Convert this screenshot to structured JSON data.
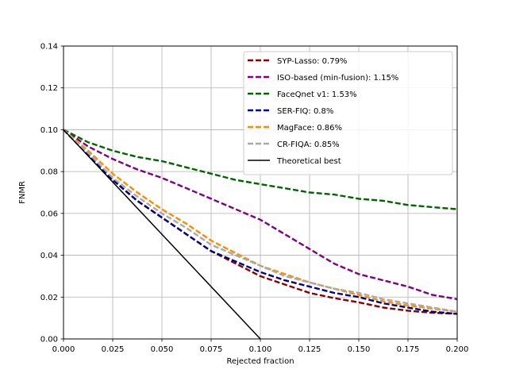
{
  "chart_data": {
    "type": "line",
    "title": "",
    "xlabel": "Rejected fraction",
    "ylabel": "FNMR",
    "xlim": [
      0.0,
      0.2
    ],
    "ylim": [
      0.0,
      0.14
    ],
    "xticks": [
      0.0,
      0.025,
      0.05,
      0.075,
      0.1,
      0.125,
      0.15,
      0.175,
      0.2
    ],
    "xtick_labels": [
      "0.000",
      "0.025",
      "0.050",
      "0.075",
      "0.100",
      "0.125",
      "0.150",
      "0.175",
      "0.200"
    ],
    "yticks": [
      0.0,
      0.02,
      0.04,
      0.06,
      0.08,
      0.1,
      0.12,
      0.14
    ],
    "ytick_labels": [
      "0.00",
      "0.02",
      "0.04",
      "0.06",
      "0.08",
      "0.10",
      "0.12",
      "0.14"
    ],
    "grid": true,
    "legend_position": "top-right",
    "series": [
      {
        "name": "SYP-Lasso: 0.79%",
        "color": "#8b0000",
        "dash": "dashed",
        "x": [
          0.0,
          0.0125,
          0.025,
          0.0375,
          0.05,
          0.0625,
          0.075,
          0.0875,
          0.1,
          0.1125,
          0.125,
          0.1375,
          0.15,
          0.1625,
          0.175,
          0.1875,
          0.2
        ],
        "y": [
          0.1,
          0.088,
          0.076,
          0.066,
          0.058,
          0.05,
          0.042,
          0.036,
          0.03,
          0.026,
          0.022,
          0.0195,
          0.0175,
          0.015,
          0.0135,
          0.0125,
          0.012
        ]
      },
      {
        "name": "ISO-based (min-fusion): 1.15%",
        "color": "#800080",
        "dash": "dashed",
        "x": [
          0.0,
          0.0125,
          0.025,
          0.0375,
          0.05,
          0.0625,
          0.075,
          0.0875,
          0.1,
          0.1125,
          0.125,
          0.1375,
          0.15,
          0.1625,
          0.175,
          0.1875,
          0.2
        ],
        "y": [
          0.1,
          0.092,
          0.086,
          0.081,
          0.077,
          0.072,
          0.067,
          0.062,
          0.057,
          0.05,
          0.043,
          0.036,
          0.031,
          0.028,
          0.025,
          0.021,
          0.019
        ]
      },
      {
        "name": "FaceQnet v1: 1.53%",
        "color": "#006400",
        "dash": "dashed",
        "x": [
          0.0,
          0.0125,
          0.025,
          0.0375,
          0.05,
          0.0625,
          0.075,
          0.0875,
          0.1,
          0.1125,
          0.125,
          0.1375,
          0.15,
          0.1625,
          0.175,
          0.1875,
          0.2
        ],
        "y": [
          0.1,
          0.094,
          0.09,
          0.087,
          0.085,
          0.082,
          0.079,
          0.076,
          0.074,
          0.072,
          0.07,
          0.069,
          0.067,
          0.066,
          0.064,
          0.063,
          0.062
        ]
      },
      {
        "name": "SER-FIQ: 0.8%",
        "color": "#00008b",
        "dash": "dashed",
        "x": [
          0.0,
          0.0125,
          0.025,
          0.0375,
          0.05,
          0.0625,
          0.075,
          0.0875,
          0.1,
          0.1125,
          0.125,
          0.1375,
          0.15,
          0.1625,
          0.175,
          0.1875,
          0.2
        ],
        "y": [
          0.1,
          0.088,
          0.076,
          0.066,
          0.058,
          0.05,
          0.042,
          0.037,
          0.032,
          0.028,
          0.025,
          0.022,
          0.02,
          0.017,
          0.015,
          0.013,
          0.012
        ]
      },
      {
        "name": "MagFace: 0.86%",
        "color": "#ff8c00",
        "dash": "dashed",
        "x": [
          0.0,
          0.0125,
          0.025,
          0.0375,
          0.05,
          0.0625,
          0.075,
          0.0875,
          0.1,
          0.1125,
          0.125,
          0.1375,
          0.15,
          0.1625,
          0.175,
          0.1875,
          0.2
        ],
        "y": [
          0.1,
          0.09,
          0.079,
          0.07,
          0.062,
          0.055,
          0.047,
          0.041,
          0.035,
          0.031,
          0.027,
          0.024,
          0.021,
          0.018,
          0.016,
          0.0145,
          0.013
        ]
      },
      {
        "name": "CR-FIQA: 0.85%",
        "color": "#a9a9a9",
        "dash": "dashed",
        "x": [
          0.0,
          0.0125,
          0.025,
          0.0375,
          0.05,
          0.0625,
          0.075,
          0.0875,
          0.1,
          0.1125,
          0.125,
          0.1375,
          0.15,
          0.1625,
          0.175,
          0.1875,
          0.2
        ],
        "y": [
          0.1,
          0.089,
          0.077,
          0.068,
          0.06,
          0.053,
          0.045,
          0.04,
          0.035,
          0.03,
          0.027,
          0.024,
          0.022,
          0.019,
          0.017,
          0.015,
          0.013
        ]
      },
      {
        "name": "Theoretical best",
        "color": "#000000",
        "dash": "solid",
        "x": [
          0.0,
          0.1
        ],
        "y": [
          0.1,
          0.0
        ]
      }
    ]
  }
}
